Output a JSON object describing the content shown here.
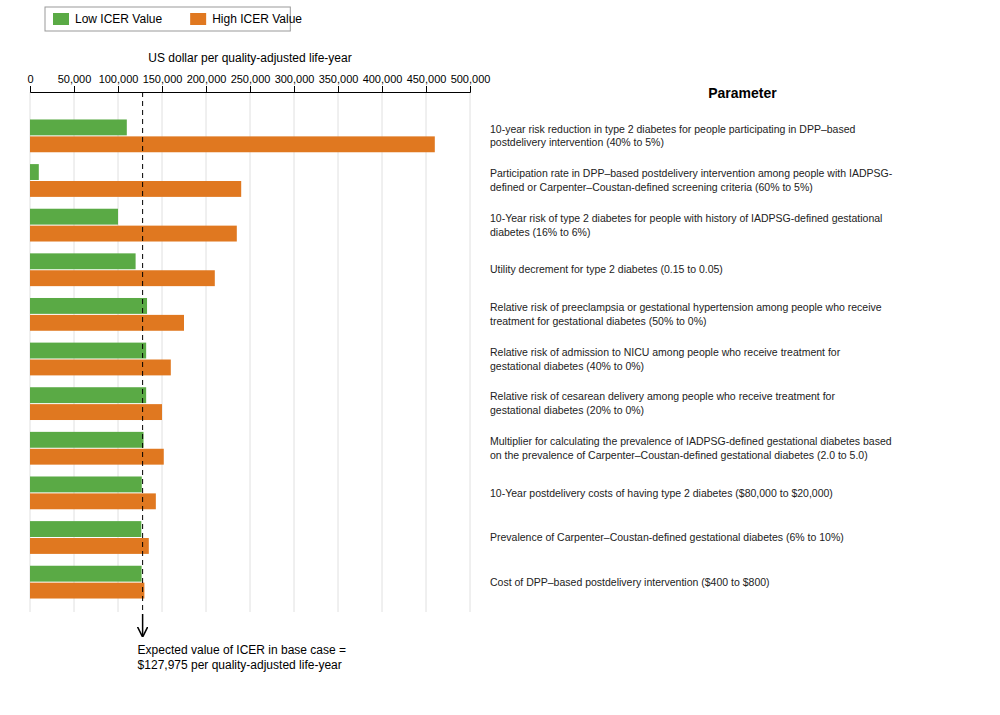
{
  "chart_data": {
    "type": "bar",
    "orientation": "horizontal",
    "categories": [
      "10-year risk reduction in type 2 diabetes for people participating in DPP–based\npostdelivery intervention (40% to 5%)",
      "Participation rate in DPP–based postdelivery intervention among people with IADPSG-\ndefined or Carpenter–Coustan-defined screening criteria (60% to 5%)",
      "10-Year risk of type 2 diabetes for people with history of IADPSG-defined gestational\ndiabetes (16% to 6%)",
      "Utility decrement for type 2 diabetes (0.15 to 0.05)",
      "Relative risk of preeclampsia or gestational hypertension among people who receive\ntreatment for gestational diabetes (50% to 0%)",
      "Relative risk of admission to NICU among people who receive treatment for\ngestational diabetes (40% to 0%)",
      "Relative risk of cesarean delivery among people who receive treatment for\ngestational diabetes (20% to 0%)",
      "Multiplier for calculating the prevalence of IADPSG-defined gestational diabetes based\non the prevalence of Carpenter–Coustan-defined gestational diabetes  (2.0 to 5.0)",
      "10-Year postdelivery costs of having type 2 diabetes ($80,000 to $20,000)",
      "Prevalence of Carpenter–Coustan-defined gestational diabetes (6% to 10%)",
      "Cost of DPP–based postdelivery intervention ($400 to $800)"
    ],
    "series": [
      {
        "name": "Low ICER Value",
        "color": "#5aaa45",
        "values": [
          110000,
          10000,
          100000,
          120000,
          133000,
          132000,
          132000,
          129000,
          127000,
          126500,
          126800
        ]
      },
      {
        "name": "High ICER Value",
        "color": "#e07820",
        "values": [
          460000,
          240000,
          235000,
          210000,
          175000,
          160000,
          150000,
          152000,
          143000,
          135000,
          130000
        ]
      }
    ],
    "xlabel": "US dollar per quality-adjusted life-year",
    "ylabel": "Parameter",
    "xlim": [
      0,
      500000
    ],
    "xticks": [
      0,
      {
        "value": 50000,
        "label": "50,000"
      },
      {
        "value": 100000,
        "label": "100,000"
      },
      {
        "value": 150000,
        "label": "150,000"
      },
      {
        "value": 200000,
        "label": "200,000"
      },
      {
        "value": 250000,
        "label": "250,000"
      },
      {
        "value": 300000,
        "label": "300,000"
      },
      {
        "value": 350000,
        "label": "350,000"
      },
      {
        "value": 400000,
        "label": "400,000"
      },
      {
        "value": 450000,
        "label": "450,000"
      },
      {
        "value": 500000,
        "label": "500,000"
      }
    ],
    "grid": true,
    "legend": "upper left",
    "annotations": [
      {
        "x": 127975,
        "text": "Expected value of ICER in base case =\n$127,975 per quality-adjusted life-year"
      }
    ]
  }
}
